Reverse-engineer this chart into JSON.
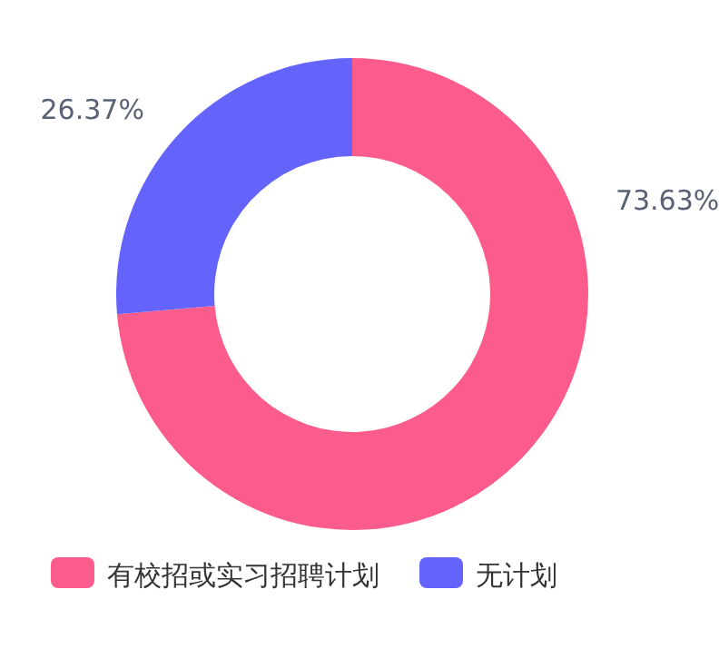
{
  "chart_data": {
    "type": "donut",
    "categories": [
      "有校招或实习招聘计划",
      "无计划"
    ],
    "values": [
      73.63,
      26.37
    ],
    "colors": [
      "#fc5c8c",
      "#6463fc"
    ],
    "value_labels": [
      "73.63%",
      "26.37%"
    ],
    "legend": "bottom"
  }
}
